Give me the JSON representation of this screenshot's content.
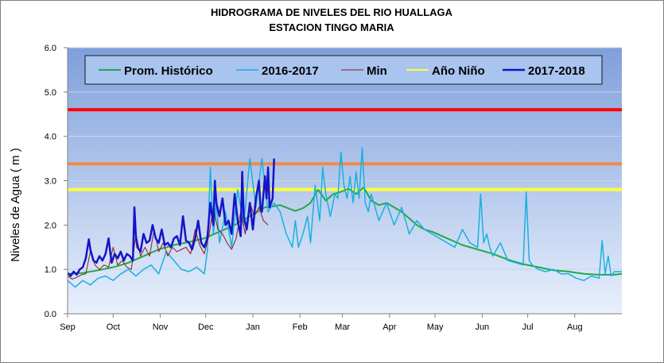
{
  "title_line1": "HIDROGRAMA DE NIVELES DEL RIO HUALLAGA",
  "title_line2": "ESTACION  TINGO MARIA",
  "ylabel": "Niveles de Agua ( m )",
  "colors": {
    "border": "#808080",
    "plot_bg_top": "#7f9fdc",
    "plot_bg_bottom": "#e8f0fc",
    "grid": "#c8d4e8",
    "legend_bg": "#a8c4ef",
    "legend_border": "#1a1a1a",
    "red_threshold": "#ff0000",
    "orange_threshold": "#f08c46",
    "yellow_threshold": "#ffff3c"
  },
  "chart_data": {
    "type": "line",
    "title": "HIDROGRAMA DE NIVELES DEL RIO HUALLAGA\nESTACION  TINGO MARIA",
    "xlabel": "",
    "ylabel": "Niveles de Agua ( m )",
    "ylim": [
      0,
      6
    ],
    "yticks": [
      "0.0",
      "1.0",
      "2.0",
      "3.0",
      "4.0",
      "5.0",
      "6.0"
    ],
    "xlim": [
      0,
      365
    ],
    "xticks": [
      {
        "label": "Sep",
        "day": 0
      },
      {
        "label": "Oct",
        "day": 30
      },
      {
        "label": "Nov",
        "day": 61
      },
      {
        "label": "Dec",
        "day": 91
      },
      {
        "label": "Jan",
        "day": 122
      },
      {
        "label": "Feb",
        "day": 153
      },
      {
        "label": "Mar",
        "day": 181
      },
      {
        "label": "Apr",
        "day": 212
      },
      {
        "label": "May",
        "day": 242
      },
      {
        "label": "Jun",
        "day": 273
      },
      {
        "label": "Jul",
        "day": 303
      },
      {
        "label": "Aug",
        "day": 334
      }
    ],
    "grid": true,
    "legend_position": "top",
    "thresholds": [
      {
        "value": 4.6,
        "color": "#ff0000"
      },
      {
        "value": 3.38,
        "color": "#f08c46"
      },
      {
        "value": 2.8,
        "color": "#ffff3c"
      }
    ],
    "series": [
      {
        "name": "Prom. Histórico",
        "color": "#22a84a",
        "width": 2,
        "x": [
          0,
          10,
          20,
          30,
          40,
          50,
          60,
          70,
          80,
          90,
          100,
          110,
          115,
          120,
          125,
          130,
          135,
          140,
          145,
          150,
          155,
          160,
          165,
          170,
          175,
          180,
          185,
          190,
          195,
          200,
          205,
          210,
          215,
          220,
          225,
          230,
          235,
          240,
          250,
          260,
          270,
          280,
          290,
          300,
          310,
          320,
          330,
          340,
          350,
          360,
          365
        ],
        "y": [
          0.9,
          0.92,
          0.98,
          1.05,
          1.15,
          1.3,
          1.45,
          1.55,
          1.62,
          1.7,
          1.85,
          2.0,
          2.1,
          2.2,
          2.3,
          2.4,
          2.42,
          2.45,
          2.38,
          2.32,
          2.38,
          2.5,
          2.8,
          2.55,
          2.7,
          2.75,
          2.82,
          2.7,
          2.85,
          2.55,
          2.45,
          2.5,
          2.4,
          2.3,
          2.15,
          2.0,
          1.9,
          1.85,
          1.7,
          1.55,
          1.45,
          1.35,
          1.22,
          1.12,
          1.05,
          0.98,
          0.95,
          0.9,
          0.88,
          0.88,
          0.9
        ]
      },
      {
        "name": "2016-2017",
        "color": "#1ab0e0",
        "width": 1.5,
        "x": [
          0,
          5,
          10,
          15,
          20,
          25,
          30,
          35,
          40,
          45,
          50,
          55,
          60,
          65,
          70,
          75,
          80,
          85,
          90,
          92,
          94,
          96,
          98,
          100,
          104,
          108,
          112,
          116,
          120,
          124,
          128,
          132,
          136,
          140,
          144,
          148,
          150,
          152,
          155,
          158,
          160,
          163,
          166,
          168,
          170,
          173,
          176,
          178,
          180,
          182,
          184,
          186,
          188,
          190,
          192,
          194,
          196,
          198,
          200,
          205,
          210,
          215,
          220,
          225,
          230,
          235,
          240,
          245,
          250,
          255,
          260,
          265,
          270,
          272,
          274,
          276,
          278,
          280,
          285,
          290,
          295,
          300,
          302,
          304,
          306,
          310,
          315,
          320,
          325,
          330,
          335,
          340,
          345,
          350,
          352,
          354,
          356,
          358,
          360,
          365
        ],
        "y": [
          0.75,
          0.6,
          0.75,
          0.65,
          0.8,
          0.85,
          0.75,
          0.9,
          1.0,
          0.85,
          1.0,
          1.1,
          0.9,
          1.4,
          1.2,
          1.0,
          0.95,
          1.05,
          0.9,
          1.4,
          3.3,
          1.8,
          2.5,
          1.6,
          2.3,
          1.5,
          2.8,
          2.0,
          3.5,
          2.4,
          3.5,
          2.3,
          2.5,
          2.3,
          1.8,
          1.5,
          2.1,
          1.5,
          1.8,
          2.2,
          1.6,
          2.9,
          2.1,
          3.3,
          2.7,
          2.2,
          2.7,
          2.6,
          3.65,
          2.9,
          2.6,
          3.1,
          2.5,
          3.2,
          2.6,
          3.75,
          2.5,
          2.3,
          2.7,
          2.1,
          2.5,
          2.0,
          2.4,
          1.8,
          2.1,
          1.9,
          1.8,
          1.7,
          1.6,
          1.5,
          1.9,
          1.6,
          1.5,
          2.7,
          1.6,
          1.8,
          1.5,
          1.3,
          1.6,
          1.2,
          1.15,
          1.1,
          2.75,
          1.2,
          1.1,
          1.0,
          0.95,
          1.0,
          0.9,
          0.9,
          0.8,
          0.75,
          0.85,
          0.8,
          1.65,
          0.9,
          1.3,
          0.85,
          0.95,
          0.95
        ]
      },
      {
        "name": "Min",
        "color": "#8b1a1a",
        "width": 1,
        "x": [
          0,
          3,
          6,
          9,
          12,
          15,
          18,
          21,
          24,
          27,
          30,
          33,
          36,
          39,
          42,
          45,
          48,
          51,
          54,
          57,
          60,
          63,
          66,
          69,
          72,
          75,
          78,
          81,
          84,
          87,
          90,
          93,
          96,
          99,
          102,
          105,
          108,
          111,
          114,
          117,
          120,
          123,
          126,
          129,
          132
        ],
        "y": [
          0.85,
          0.78,
          0.82,
          0.88,
          0.9,
          1.4,
          1.1,
          1.0,
          1.1,
          1.05,
          1.5,
          1.1,
          1.2,
          1.05,
          1.0,
          1.8,
          1.3,
          1.5,
          1.3,
          1.9,
          1.4,
          1.6,
          1.3,
          1.5,
          1.4,
          1.45,
          1.5,
          1.35,
          1.9,
          1.55,
          1.35,
          1.75,
          2.4,
          1.9,
          1.8,
          1.6,
          1.45,
          1.7,
          2.3,
          1.8,
          2.5,
          2.2,
          2.4,
          2.1,
          2.0
        ]
      },
      {
        "name": "Año Niño",
        "color": "#ffff3c",
        "width": 2,
        "x": [],
        "y": []
      },
      {
        "name": "2017-2018",
        "color": "#1414c8",
        "width": 2.5,
        "x": [
          0,
          2,
          4,
          6,
          8,
          10,
          12,
          14,
          15,
          17,
          19,
          21,
          23,
          25,
          27,
          28,
          29,
          31,
          33,
          35,
          37,
          39,
          41,
          43,
          44,
          45,
          46,
          48,
          50,
          52,
          54,
          56,
          58,
          60,
          62,
          64,
          66,
          68,
          70,
          72,
          74,
          76,
          78,
          80,
          82,
          84,
          86,
          88,
          90,
          92,
          94,
          96,
          97,
          98,
          100,
          102,
          104,
          106,
          108,
          110,
          112,
          114,
          115,
          116,
          118,
          120,
          121,
          122,
          124,
          126,
          127,
          128,
          130,
          131,
          132,
          133,
          135,
          136
        ],
        "y": [
          0.92,
          0.85,
          0.95,
          0.88,
          1.0,
          1.05,
          1.25,
          1.68,
          1.45,
          1.2,
          1.15,
          1.3,
          1.2,
          1.35,
          1.7,
          1.4,
          1.15,
          1.35,
          1.25,
          1.4,
          1.2,
          1.35,
          1.3,
          1.2,
          2.4,
          1.75,
          1.5,
          1.4,
          1.8,
          1.6,
          1.65,
          2.0,
          1.7,
          1.6,
          1.9,
          1.55,
          1.6,
          1.5,
          1.7,
          1.75,
          1.55,
          2.2,
          1.65,
          1.6,
          1.45,
          1.7,
          2.1,
          1.6,
          1.5,
          1.7,
          2.5,
          2.0,
          3.0,
          2.5,
          2.2,
          2.6,
          2.0,
          2.1,
          1.8,
          2.7,
          2.1,
          1.75,
          3.2,
          2.2,
          1.9,
          2.5,
          2.2,
          1.9,
          2.6,
          3.0,
          2.4,
          2.3,
          3.1,
          2.6,
          3.3,
          2.4,
          2.6,
          3.5
        ]
      }
    ]
  }
}
